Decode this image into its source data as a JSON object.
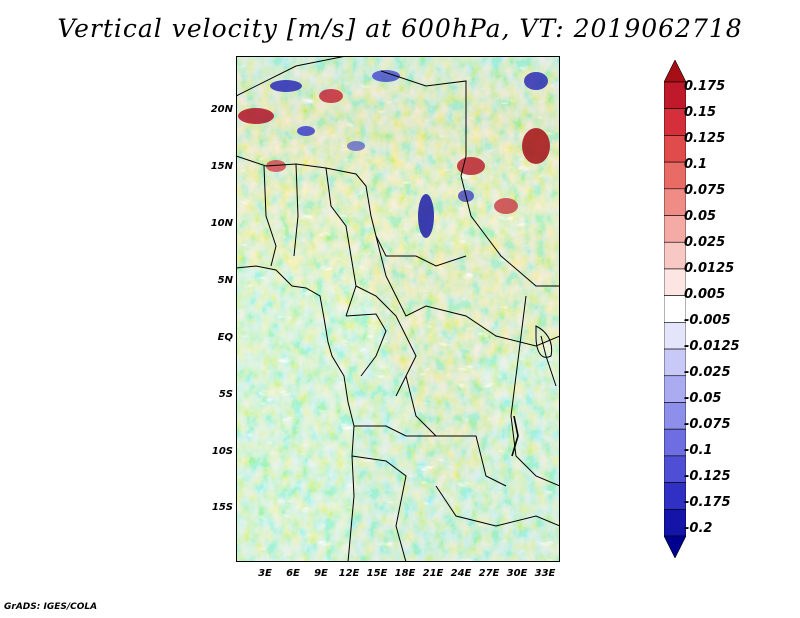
{
  "title": "Vertical velocity [m/s] at 600hPa, VT: 2019062718",
  "footer": "GrADS: IGES/COLA",
  "map": {
    "lat_labels": [
      "20N",
      "15N",
      "10N",
      "5N",
      "EQ",
      "5S",
      "10S",
      "15S"
    ],
    "lon_labels": [
      "3E",
      "6E",
      "9E",
      "12E",
      "15E",
      "18E",
      "21E",
      "24E",
      "27E",
      "30E",
      "33E"
    ]
  },
  "colorbar": {
    "levels": [
      "0.175",
      "0.15",
      "0.125",
      "0.1",
      "0.075",
      "0.05",
      "0.025",
      "0.0125",
      "0.005",
      "-0.005",
      "-0.0125",
      "-0.025",
      "-0.05",
      "-0.075",
      "-0.1",
      "-0.125",
      "-0.175",
      "-0.2"
    ],
    "colors": [
      "#a50f15",
      "#c0192b",
      "#d42f3a",
      "#e04b4b",
      "#e86b66",
      "#ef8c86",
      "#f4aaa5",
      "#f8c8c4",
      "#fce5e3",
      "#ffffff",
      "#e4e4fb",
      "#c9c9f7",
      "#ababf2",
      "#8e8eeb",
      "#6e6ee2",
      "#4f4fd6",
      "#3030c4",
      "#1414a8",
      "#000090"
    ]
  }
}
